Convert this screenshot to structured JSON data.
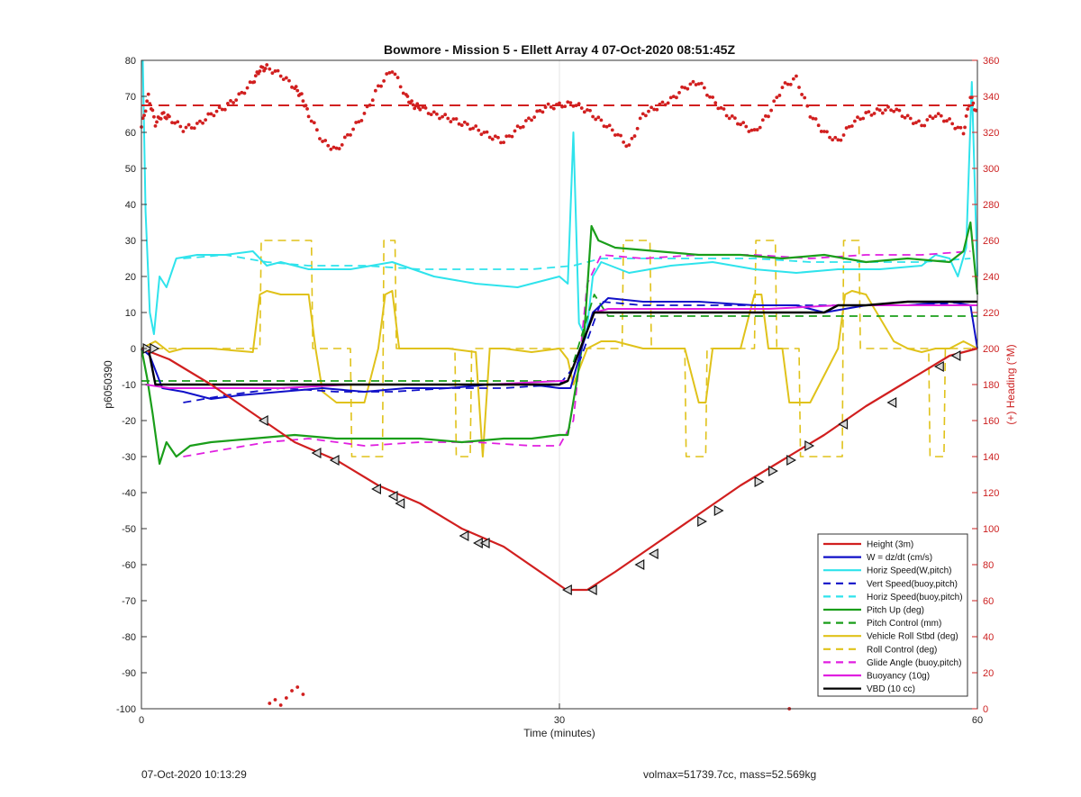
{
  "chart_data": {
    "type": "line",
    "title": "Bowmore - Mission 5 - Ellett Array 4 07-Oct-2020 08:51:45Z",
    "xlabel": "Time (minutes)",
    "ylabel": "p6050390",
    "ylabel_right": "(+) Heading (°M)",
    "xlim": [
      0,
      60
    ],
    "ylim": [
      -100,
      80
    ],
    "ylim_right": [
      0,
      360
    ],
    "x_ticks": [
      "0",
      "30",
      "60"
    ],
    "y_ticks": [
      "80",
      "70",
      "60",
      "50",
      "40",
      "30",
      "20",
      "10",
      "0",
      "-10",
      "-20",
      "-30",
      "-40",
      "-50",
      "-60",
      "-70",
      "-80",
      "-90",
      "-100"
    ],
    "y_ticks_right": [
      "360",
      "340",
      "320",
      "300",
      "280",
      "260",
      "240",
      "220",
      "200",
      "180",
      "160",
      "140",
      "120",
      "100",
      "80",
      "60",
      "40",
      "20",
      "0"
    ],
    "grid": "x-only",
    "legend_position": "bottom-right",
    "legend": [
      {
        "name": "Height (3m)",
        "color": "#d11f1f",
        "dash": false
      },
      {
        "name": "W = dz/dt (cm/s)",
        "color": "#1010c8",
        "dash": false
      },
      {
        "name": "Horiz Speed(W,pitch)",
        "color": "#2fe3ec",
        "dash": false
      },
      {
        "name": "Vert Speed(buoy,pitch)",
        "color": "#1010c8",
        "dash": true
      },
      {
        "name": "Horiz Speed(buoy,pitch)",
        "color": "#2fe3ec",
        "dash": true
      },
      {
        "name": "Pitch Up (deg)",
        "color": "#1a9e1a",
        "dash": false
      },
      {
        "name": "Pitch Control (mm)",
        "color": "#1a9e1a",
        "dash": true
      },
      {
        "name": "Vehicle Roll Stbd (deg)",
        "color": "#e0c21a",
        "dash": false
      },
      {
        "name": "Roll Control (deg)",
        "color": "#e0c21a",
        "dash": true
      },
      {
        "name": "Glide Angle (buoy,pitch)",
        "color": "#e01fe0",
        "dash": true
      },
      {
        "name": "Buoyancy (10g)",
        "color": "#e01fe0",
        "dash": false
      },
      {
        "name": "VBD (10 cc)",
        "color": "#000000",
        "dash": false
      }
    ],
    "series": [
      {
        "key": "height",
        "color": "#d11f1f",
        "dash": false,
        "width": 2.2,
        "x": [
          0,
          2,
          5,
          8,
          11,
          14,
          17,
          20,
          23,
          26,
          29,
          30.5,
          32,
          34,
          37,
          40,
          43,
          46,
          49,
          52,
          55,
          58,
          60
        ],
        "y": [
          0,
          -3,
          -10,
          -18,
          -26,
          -31,
          -38,
          -43,
          -50,
          -55,
          -63,
          -67,
          -67,
          -62,
          -54,
          -46,
          -38,
          -31,
          -24,
          -16,
          -9,
          -2,
          0
        ]
      },
      {
        "key": "w",
        "color": "#1010c8",
        "dash": false,
        "width": 2,
        "x": [
          0,
          0.6,
          1.5,
          3,
          5,
          7,
          10,
          13,
          16,
          19,
          22,
          25,
          28,
          30,
          30.8,
          31.6,
          32.4,
          33.5,
          36,
          40,
          44,
          47,
          49,
          52,
          55,
          58,
          59.5,
          60
        ],
        "y": [
          0,
          -2,
          -11,
          -12,
          -14,
          -13,
          -12,
          -11,
          -12,
          -11,
          -11,
          -10,
          -10,
          -11,
          -11,
          0,
          10,
          14,
          13,
          13,
          12,
          12,
          10,
          12,
          12,
          13,
          12,
          0
        ]
      },
      {
        "key": "vert_buoy",
        "color": "#1010c8",
        "dash": true,
        "width": 1.8,
        "x": [
          3,
          6,
          10,
          14,
          18,
          22,
          26,
          30,
          31.5,
          33,
          36,
          40,
          44,
          48,
          52,
          56,
          59.5
        ],
        "y": [
          -15,
          -13,
          -11,
          -12,
          -12,
          -11,
          -11,
          -10,
          -3,
          13,
          12,
          12,
          12,
          12,
          12,
          12,
          13
        ]
      },
      {
        "key": "horiz_w",
        "color": "#2fe3ec",
        "dash": false,
        "width": 2,
        "x": [
          0.1,
          0.3,
          0.6,
          0.9,
          1.3,
          1.8,
          2.5,
          4,
          6,
          8,
          9,
          10,
          12,
          15,
          18,
          21,
          24,
          27,
          30,
          30.6,
          31,
          31.4,
          31.9,
          32.4,
          33,
          35,
          38,
          41,
          44,
          47,
          50,
          53,
          56,
          57,
          58,
          58.6,
          59.2,
          59.6,
          60
        ],
        "y": [
          80,
          38,
          10,
          4,
          20,
          17,
          25,
          26,
          26,
          27,
          23,
          24,
          22,
          22,
          24,
          20,
          18,
          17,
          20,
          18,
          60,
          7,
          3,
          20,
          24,
          21,
          23,
          24,
          22,
          21,
          22,
          22,
          23,
          26,
          25,
          20,
          28,
          74,
          20
        ]
      },
      {
        "key": "horiz_buoy",
        "color": "#2fe3ec",
        "dash": true,
        "width": 1.8,
        "x": [
          3,
          6,
          9,
          12,
          16,
          20,
          24,
          28,
          31,
          33,
          36,
          40,
          44,
          48,
          52,
          56,
          59.5
        ],
        "y": [
          25,
          26,
          24,
          23,
          23,
          22,
          22,
          22,
          23,
          25,
          25,
          25,
          25,
          24,
          24,
          24,
          25
        ]
      },
      {
        "key": "pitch_up",
        "color": "#1a9e1a",
        "dash": false,
        "width": 2.2,
        "x": [
          0,
          0.4,
          0.8,
          1.3,
          1.8,
          2.5,
          3.5,
          5,
          8,
          11,
          14,
          17,
          20,
          23,
          26,
          28,
          30,
          30.6,
          31.2,
          31.8,
          32.3,
          32.8,
          34,
          37,
          40,
          43,
          46,
          49,
          52,
          55,
          58,
          59,
          59.5,
          60
        ],
        "y": [
          0,
          -8,
          -18,
          -32,
          -26,
          -30,
          -27,
          -26,
          -25,
          -24,
          -25,
          -25,
          -25,
          -26,
          -25,
          -25,
          -24,
          -24,
          -10,
          5,
          34,
          30,
          28,
          27,
          26,
          26,
          25,
          26,
          24,
          25,
          24,
          27,
          35,
          15
        ]
      },
      {
        "key": "pitch_control",
        "color": "#1a9e1a",
        "dash": true,
        "width": 1.8,
        "x": [
          0,
          1,
          5,
          10,
          15,
          20,
          25,
          30,
          30.6,
          32.5,
          33.5,
          40,
          50,
          60
        ],
        "y": [
          -9,
          -9,
          -9,
          -9,
          -9,
          -9,
          -9,
          -9,
          -9,
          15,
          9,
          9,
          9,
          9
        ]
      },
      {
        "key": "roll",
        "color": "#e0c21a",
        "dash": false,
        "width": 2,
        "x": [
          0,
          1,
          2,
          3,
          5,
          8,
          8.5,
          9,
          10,
          12,
          12.5,
          13,
          14,
          16,
          17,
          17.5,
          18,
          18.5,
          19,
          20,
          22,
          24,
          24.5,
          25,
          26,
          28,
          30,
          30.6,
          31,
          32,
          33,
          34,
          35,
          36,
          37,
          38,
          39,
          40,
          40.5,
          41,
          42,
          43,
          44,
          44.5,
          45,
          46,
          46.5,
          47,
          48,
          50,
          50.5,
          51,
          52,
          54,
          55,
          56,
          57,
          58,
          59,
          60
        ],
        "y": [
          0,
          2,
          -1,
          0,
          0,
          -1,
          15,
          16,
          15,
          15,
          0,
          -12,
          -15,
          -15,
          0,
          15,
          16,
          0,
          0,
          0,
          0,
          -1,
          -30,
          0,
          0,
          -1,
          0,
          -3,
          -10,
          0,
          2,
          2,
          1,
          0,
          0,
          0,
          0,
          -15,
          -15,
          0,
          0,
          0,
          15,
          15,
          0,
          0,
          -15,
          -15,
          -15,
          0,
          15,
          16,
          15,
          2,
          0,
          -1,
          0,
          0,
          2,
          0
        ]
      },
      {
        "key": "roll_control",
        "color": "#e0c21a",
        "dash": true,
        "width": 1.6,
        "x": [
          0,
          8.5,
          8.6,
          12.2,
          12.3,
          15,
          15.1,
          17.3,
          17.4,
          18.2,
          18.3,
          22.5,
          22.6,
          23.6,
          23.7,
          30,
          31,
          34.5,
          34.6,
          36.5,
          36.6,
          39,
          39.1,
          40.5,
          40.6,
          44,
          44.1,
          45.5,
          45.6,
          47.2,
          47.3,
          50.3,
          50.4,
          51.5,
          51.6,
          56.5,
          56.6,
          57.6,
          57.7,
          60
        ],
        "y": [
          0,
          0,
          30,
          30,
          0,
          0,
          -30,
          -30,
          30,
          30,
          0,
          0,
          -30,
          -30,
          0,
          0,
          0,
          0,
          30,
          30,
          0,
          0,
          -30,
          -30,
          0,
          0,
          30,
          30,
          0,
          0,
          -30,
          -30,
          30,
          30,
          0,
          0,
          -30,
          -30,
          0,
          0
        ]
      },
      {
        "key": "glide",
        "color": "#e01fe0",
        "dash": true,
        "width": 1.8,
        "x": [
          3,
          6,
          9,
          12,
          16,
          20,
          24,
          28,
          30,
          31,
          32,
          33,
          36,
          40,
          44,
          48,
          52,
          56,
          59.5
        ],
        "y": [
          -30,
          -28,
          -26,
          -25,
          -27,
          -26,
          -26,
          -27,
          -27,
          -20,
          18,
          26,
          25,
          26,
          26,
          25,
          26,
          26,
          27
        ]
      },
      {
        "key": "buoyancy",
        "color": "#e01fe0",
        "dash": false,
        "width": 2,
        "x": [
          0.3,
          2,
          5,
          10,
          15,
          20,
          25,
          30,
          30.6,
          32.5,
          33.5,
          40,
          45,
          50,
          55,
          60
        ],
        "y": [
          -10,
          -11,
          -11,
          -11,
          -10,
          -10,
          -10,
          -9,
          -9,
          10,
          11,
          11,
          11,
          12,
          12,
          12
        ]
      },
      {
        "key": "vbd",
        "color": "#000000",
        "dash": false,
        "width": 2.4,
        "x": [
          0,
          0.5,
          1,
          5,
          10,
          15,
          20,
          25,
          30,
          30.6,
          32.5,
          33.5,
          40,
          45,
          49,
          50,
          52,
          55,
          60
        ],
        "y": [
          0,
          0,
          -10,
          -10,
          -10,
          -10,
          -10,
          -10,
          -10,
          -9,
          10,
          10,
          10,
          10,
          10,
          12,
          12,
          13,
          13
        ]
      }
    ],
    "heading_x": [
      0,
      0.5,
      1,
      1.5,
      2,
      3,
      4,
      5,
      6,
      7,
      8,
      8.5,
      9,
      10,
      11,
      11.5,
      12,
      13,
      14,
      15,
      16,
      17,
      18,
      19,
      19.5,
      20,
      21,
      22,
      23,
      24,
      25,
      26,
      27,
      28,
      29,
      30,
      31,
      32,
      33,
      34,
      35,
      36,
      37,
      38,
      39,
      40,
      41,
      42,
      43,
      44,
      45,
      46,
      47,
      48,
      49,
      50,
      51,
      52,
      53,
      54,
      55,
      56,
      57,
      58,
      59,
      59.5,
      60
    ],
    "heading_y": [
      323,
      340,
      325,
      330,
      328,
      322,
      324,
      330,
      334,
      340,
      348,
      355,
      356,
      352,
      345,
      340,
      330,
      315,
      310,
      320,
      330,
      345,
      355,
      340,
      335,
      334,
      330,
      328,
      325,
      322,
      318,
      315,
      322,
      328,
      334,
      335,
      336,
      332,
      326,
      320,
      312,
      330,
      334,
      338,
      345,
      348,
      338,
      330,
      325,
      320,
      330,
      345,
      350,
      330,
      320,
      315,
      325,
      330,
      332,
      333,
      328,
      324,
      330,
      326,
      320,
      340,
      330
    ],
    "heading_reference": 335,
    "heading_outliers_x": [
      9.2,
      9.6,
      10,
      10.4,
      10.8,
      11.2,
      11.6,
      46.5
    ],
    "heading_outliers_y": [
      3,
      5,
      2,
      6,
      10,
      12,
      8,
      0
    ],
    "markers_x": [
      0.4,
      0.9,
      8.8,
      12.6,
      13.9,
      16.9,
      18.1,
      18.6,
      23.2,
      24.2,
      24.7,
      30.6,
      32.4,
      35.8,
      36.8,
      40.2,
      41.4,
      44.3,
      45.3,
      46.6,
      47.9,
      50.4,
      53.9,
      57.3,
      58.5
    ],
    "markers_y": [
      0,
      0,
      -20,
      -29,
      -31,
      -39,
      -41,
      -43,
      -52,
      -54,
      -54,
      -67,
      -67,
      -60,
      -57,
      -48,
      -45,
      -37,
      -34,
      -31,
      -27,
      -21,
      -15,
      -5,
      -2
    ],
    "markers_dir": [
      "r",
      "r",
      "l",
      "l",
      "l",
      "l",
      "l",
      "l",
      "l",
      "l",
      "l",
      "l",
      "l",
      "l",
      "l",
      "r",
      "r",
      "r",
      "r",
      "r",
      "r",
      "l",
      "l",
      "l",
      "l"
    ]
  },
  "footer": {
    "timestamp": "07-Oct-2020 10:13:29",
    "info": "volmax=51739.7cc, mass=52.569kg"
  }
}
